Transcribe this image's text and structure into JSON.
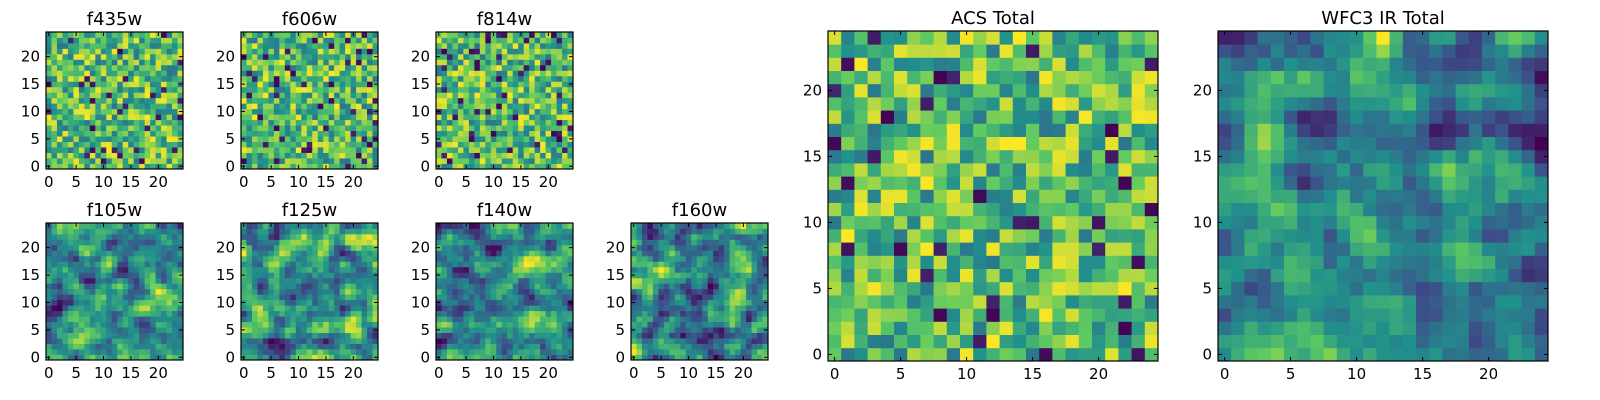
{
  "colormap": "viridis",
  "colors": {
    "cmap": [
      "#440154",
      "#3b528b",
      "#21918c",
      "#5ec962",
      "#fde725"
    ]
  },
  "chart_data": [
    {
      "id": "f435w",
      "type": "heatmap",
      "title": "f435w",
      "grid_size": 25,
      "xticks": [
        "0",
        "5",
        "10",
        "15",
        "20"
      ],
      "yticks": [
        "0",
        "5",
        "10",
        "15",
        "20"
      ],
      "seed": 435,
      "smooth": 0,
      "value_range": [
        0,
        1
      ]
    },
    {
      "id": "f606w",
      "type": "heatmap",
      "title": "f606w",
      "grid_size": 25,
      "xticks": [
        "0",
        "5",
        "10",
        "15",
        "20"
      ],
      "yticks": [
        "0",
        "5",
        "10",
        "15",
        "20"
      ],
      "seed": 606,
      "smooth": 0,
      "value_range": [
        0,
        1
      ]
    },
    {
      "id": "f814w",
      "type": "heatmap",
      "title": "f814w",
      "grid_size": 25,
      "xticks": [
        "0",
        "5",
        "10",
        "15",
        "20"
      ],
      "yticks": [
        "0",
        "5",
        "10",
        "15",
        "20"
      ],
      "seed": 814,
      "smooth": 0,
      "value_range": [
        0,
        1
      ]
    },
    {
      "id": "f105w",
      "type": "heatmap",
      "title": "f105w",
      "grid_size": 25,
      "xticks": [
        "0",
        "5",
        "10",
        "15",
        "20"
      ],
      "yticks": [
        "0",
        "5",
        "10",
        "15",
        "20"
      ],
      "seed": 105,
      "smooth": 1,
      "value_range": [
        0,
        1
      ]
    },
    {
      "id": "f125w",
      "type": "heatmap",
      "title": "f125w",
      "grid_size": 25,
      "xticks": [
        "0",
        "5",
        "10",
        "15",
        "20"
      ],
      "yticks": [
        "0",
        "5",
        "10",
        "15",
        "20"
      ],
      "seed": 125,
      "smooth": 1,
      "value_range": [
        0,
        1
      ]
    },
    {
      "id": "f140w",
      "type": "heatmap",
      "title": "f140w",
      "grid_size": 25,
      "xticks": [
        "0",
        "5",
        "10",
        "15",
        "20"
      ],
      "yticks": [
        "0",
        "5",
        "10",
        "15",
        "20"
      ],
      "seed": 140,
      "smooth": 1,
      "value_range": [
        0,
        1
      ]
    },
    {
      "id": "f160w",
      "type": "heatmap",
      "title": "f160w",
      "grid_size": 25,
      "xticks": [
        "0",
        "5",
        "10",
        "15",
        "20"
      ],
      "yticks": [
        "0",
        "5",
        "10",
        "15",
        "20"
      ],
      "seed": 160,
      "smooth": 1,
      "value_range": [
        0,
        1
      ]
    },
    {
      "id": "acs-total",
      "type": "heatmap",
      "title": "ACS Total",
      "grid_size": 25,
      "xticks": [
        "0",
        "5",
        "10",
        "15",
        "20"
      ],
      "yticks": [
        "0",
        "5",
        "10",
        "15",
        "20"
      ],
      "seed": 1001,
      "smooth": 0,
      "value_range": [
        0,
        1
      ]
    },
    {
      "id": "wfc3-total",
      "type": "heatmap",
      "title": "WFC3 IR Total",
      "grid_size": 25,
      "xticks": [
        "0",
        "5",
        "10",
        "15",
        "20"
      ],
      "yticks": [
        "0",
        "5",
        "10",
        "15",
        "20"
      ],
      "seed": 2002,
      "smooth": 1,
      "value_range": [
        0,
        1
      ]
    }
  ]
}
